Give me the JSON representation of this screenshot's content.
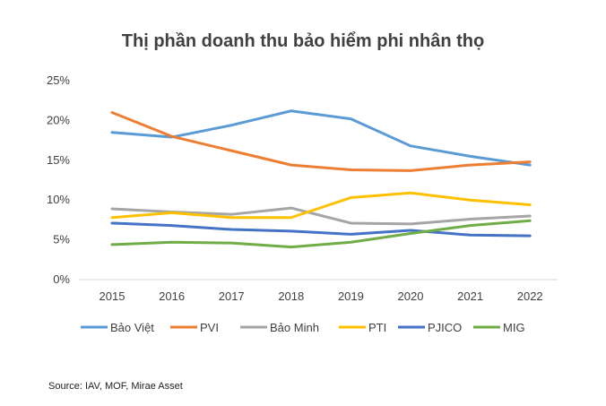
{
  "chart_data": {
    "type": "line",
    "title": "Thị phần doanh thu bảo hiểm phi nhân thọ",
    "xlabel": "",
    "ylabel": "",
    "categories": [
      "2015",
      "2016",
      "2017",
      "2018",
      "2019",
      "2020",
      "2021",
      "2022"
    ],
    "yticks": [
      "0%",
      "5%",
      "10%",
      "15%",
      "20%",
      "25%"
    ],
    "ylim": [
      0,
      25
    ],
    "grid": false,
    "legend_position": "bottom",
    "series": [
      {
        "name": "Bảo Việt",
        "color": "#5B9BD5",
        "values": [
          18.5,
          17.9,
          19.4,
          21.2,
          20.2,
          16.8,
          15.5,
          14.4
        ]
      },
      {
        "name": "PVI",
        "color": "#ED7D31",
        "values": [
          21.0,
          18.0,
          16.2,
          14.4,
          13.8,
          13.7,
          14.4,
          14.8
        ]
      },
      {
        "name": "Bảo Minh",
        "color": "#A5A5A5",
        "values": [
          8.9,
          8.5,
          8.2,
          9.0,
          7.1,
          7.0,
          7.6,
          8.0
        ]
      },
      {
        "name": "PTI",
        "color": "#FFC000",
        "values": [
          7.8,
          8.4,
          7.8,
          7.8,
          10.3,
          10.9,
          10.0,
          9.4
        ]
      },
      {
        "name": "PJICO",
        "color": "#4472C4",
        "values": [
          7.1,
          6.8,
          6.3,
          6.1,
          5.7,
          6.2,
          5.6,
          5.5
        ]
      },
      {
        "name": "MIG",
        "color": "#70AD47",
        "values": [
          4.4,
          4.7,
          4.6,
          4.1,
          4.7,
          5.8,
          6.8,
          7.4
        ]
      }
    ]
  },
  "source": "Source: IAV, MOF, Mirae Asset"
}
